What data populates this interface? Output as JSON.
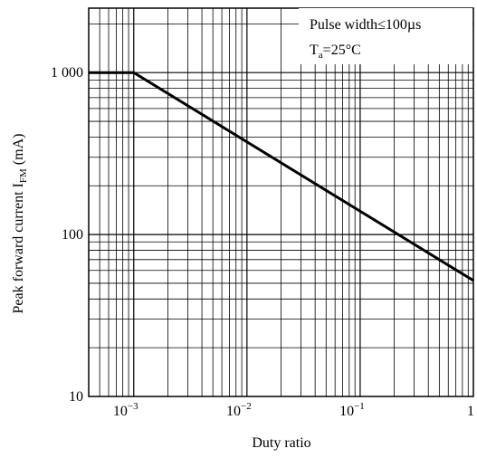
{
  "chart_data": {
    "type": "line",
    "title": "",
    "xlabel": "Duty ratio",
    "ylabel_main": "Peak forward current I",
    "ylabel_sub": "FM",
    "ylabel_unit": " (mA)",
    "x_scale": "log",
    "y_scale": "log",
    "xlim": [
      0.0004,
      1
    ],
    "ylim": [
      10,
      2500
    ],
    "grid": true,
    "x_ticks": [
      {
        "value": 0.001,
        "base": "10",
        "exp": "−3"
      },
      {
        "value": 0.01,
        "base": "10",
        "exp": "−2"
      },
      {
        "value": 0.1,
        "base": "10",
        "exp": "−1"
      },
      {
        "value": 1,
        "base": "1",
        "exp": ""
      }
    ],
    "y_ticks": [
      {
        "value": 10,
        "label": "10"
      },
      {
        "value": 100,
        "label": "100"
      },
      {
        "value": 1000,
        "label": "1 000"
      }
    ],
    "series": [
      {
        "x": [
          0.0004,
          0.001,
          1
        ],
        "y": [
          1000,
          1000,
          52
        ],
        "color": "#000000"
      }
    ],
    "annotation": {
      "line1": "Pulse width≤100µs",
      "line2_main": "T",
      "line2_sub": "a",
      "line2_rest": "=25°C"
    }
  }
}
